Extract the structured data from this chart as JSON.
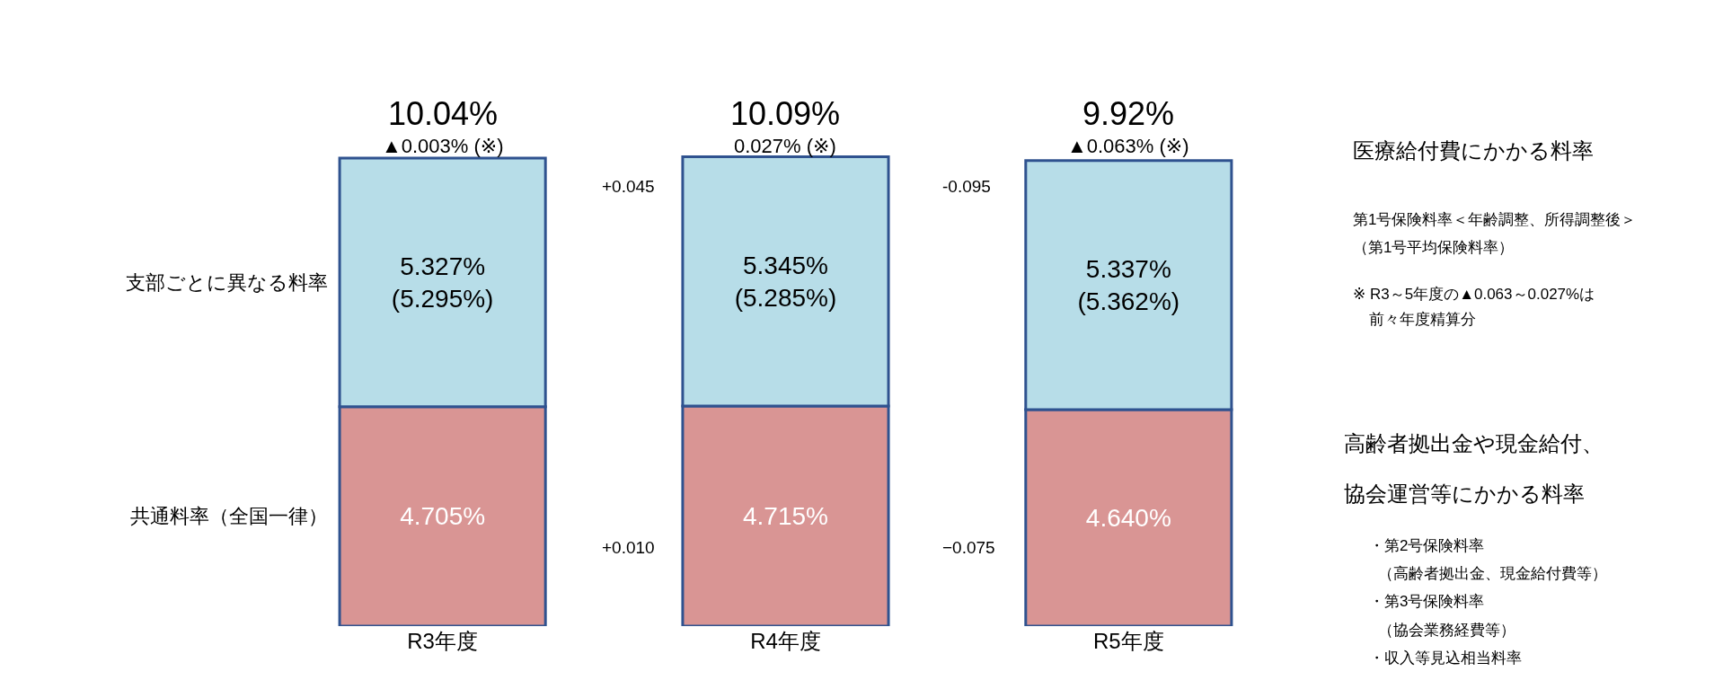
{
  "chart_data": {
    "type": "bar",
    "stacked": true,
    "categories": [
      "R3年度",
      "R4年度",
      "R5年度"
    ],
    "series": [
      {
        "name": "共通料率（全国一律）",
        "color": "#d99594",
        "values": [
          4.705,
          4.715,
          4.64
        ],
        "value_labels": [
          "4.705%",
          "4.715%",
          "4.640%"
        ]
      },
      {
        "name": "支部ごとに異なる料率",
        "color": "#b7dde8",
        "values": [
          5.327,
          5.345,
          5.337
        ],
        "value_labels": [
          "5.327%\n(5.295%)",
          "5.345%\n(5.285%)",
          "5.337%\n(5.362%)"
        ]
      }
    ],
    "annotations": [
      "+0.045",
      "+0.010",
      "-0.095",
      "−0.075",
      "医療給付費にかかる料率",
      "第1号保険料率＜年齢調整、所得調整後＞",
      "（第1号平均保険料率）",
      "※ R3～5年度の▲0.063～0.027%は",
      "前々年度精算分",
      "高齢者拠出金や現金給付、",
      "協会運営等にかかる料率",
      "・第2号保険料率",
      "（高齢者拠出金、現金給付費等）",
      "・第3号保険料率",
      "（協会業務経費等）",
      "・収入等見込相当料率",
      "▲0.003% (※)",
      "0.027% (※)",
      "▲0.063% (※)",
      "10.04%",
      "10.09%",
      "9.92%"
    ],
    "legend": false,
    "grid": false
  }
}
